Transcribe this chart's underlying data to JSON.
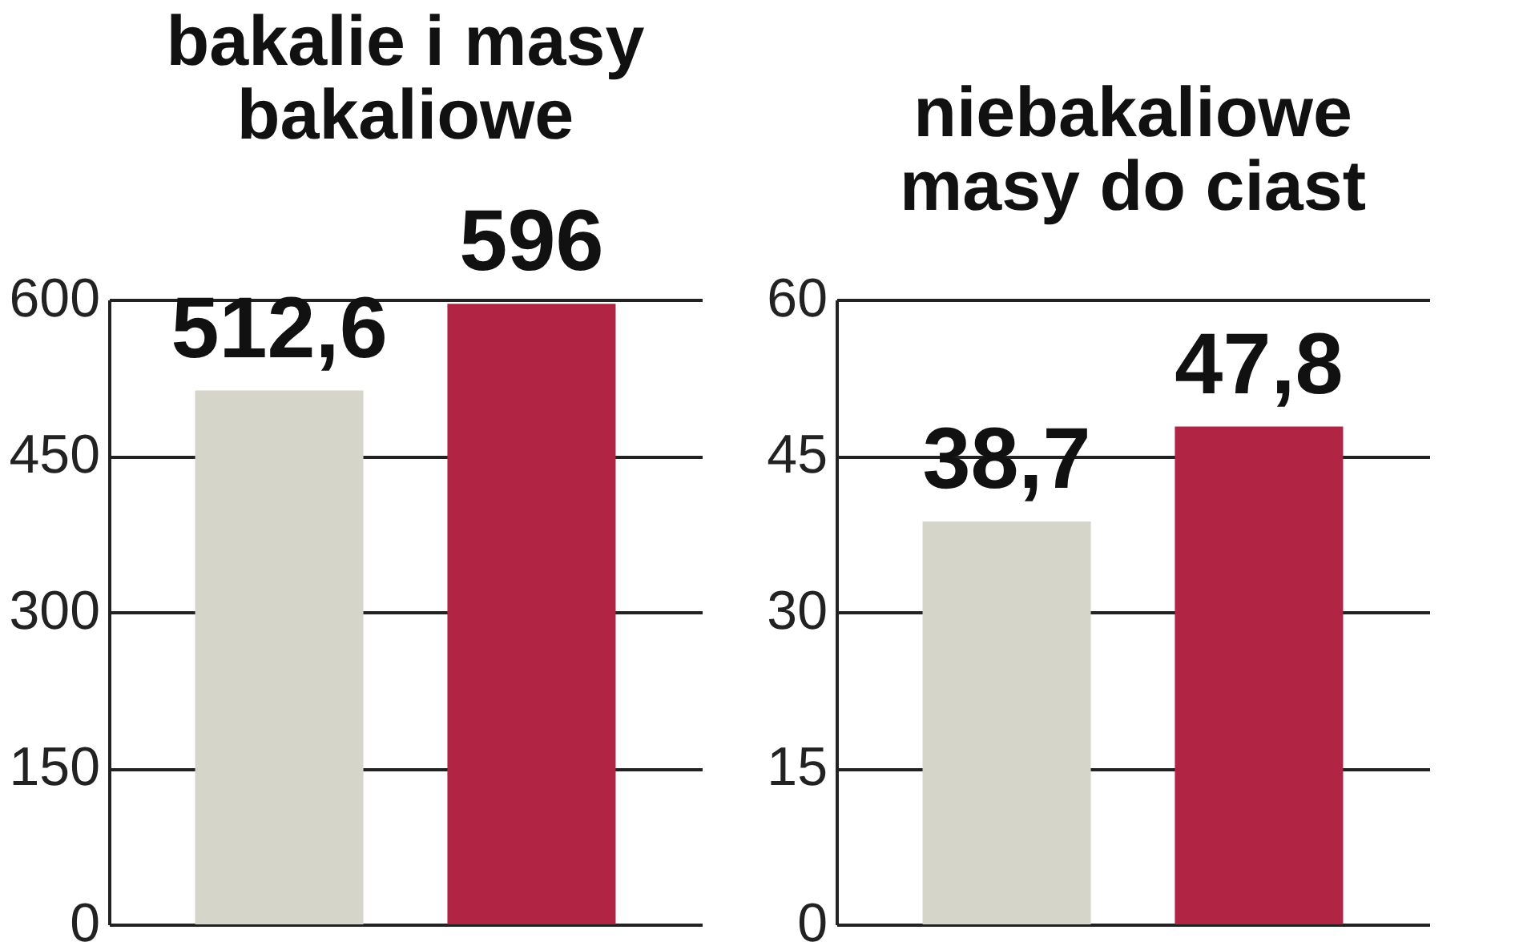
{
  "chart_data": [
    {
      "type": "bar",
      "title": "bakalie i masy\nbakaliowe",
      "categories": [
        null,
        null
      ],
      "values": [
        512.6,
        596
      ],
      "colors": [
        "#d5d5c9",
        "#b22443"
      ],
      "value_labels": [
        "512,6",
        "596"
      ],
      "ylim": [
        0,
        600
      ],
      "yticks": [
        0,
        150,
        300,
        450,
        600
      ],
      "grid": "y"
    },
    {
      "type": "bar",
      "title": "niebakaliowe\nmasy do ciast",
      "categories": [
        null,
        null
      ],
      "values": [
        38.7,
        47.8
      ],
      "colors": [
        "#d5d5c9",
        "#b22443"
      ],
      "value_labels": [
        "38,7",
        "47,8"
      ],
      "ylim": [
        0,
        60
      ],
      "yticks": [
        0,
        15,
        30,
        45,
        60
      ],
      "grid": "y"
    }
  ]
}
